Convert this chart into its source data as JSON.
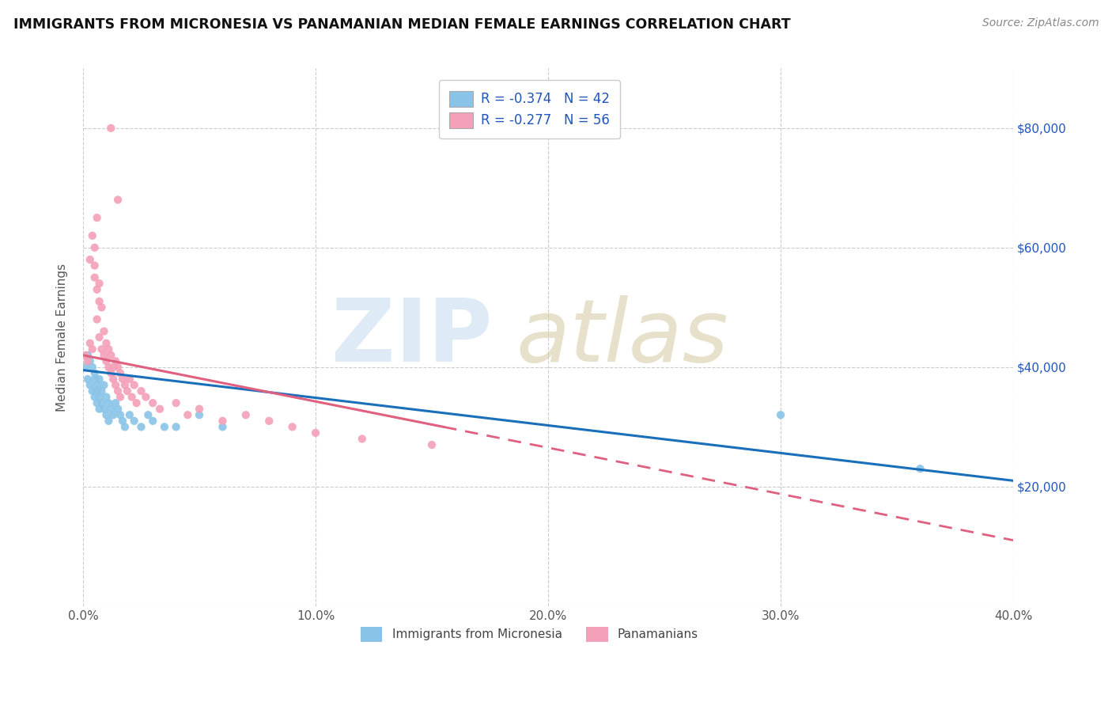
{
  "title": "IMMIGRANTS FROM MICRONESIA VS PANAMANIAN MEDIAN FEMALE EARNINGS CORRELATION CHART",
  "source": "Source: ZipAtlas.com",
  "ylabel": "Median Female Earnings",
  "legend_label_1": "Immigrants from Micronesia",
  "legend_label_2": "Panamanians",
  "color_blue": "#89c4e8",
  "color_pink": "#f4a0b8",
  "color_blue_line": "#1a6fba",
  "color_pink_line": "#e06080",
  "color_text_blue": "#2255bb",
  "xlim": [
    0.0,
    0.4
  ],
  "ylim": [
    0,
    90000
  ],
  "yticks": [
    0,
    20000,
    40000,
    60000,
    80000
  ],
  "ytick_labels": [
    "",
    "$20,000",
    "$40,000",
    "$60,000",
    "$80,000"
  ],
  "blue_scatter_x": [
    0.001,
    0.002,
    0.002,
    0.003,
    0.003,
    0.004,
    0.004,
    0.005,
    0.005,
    0.005,
    0.006,
    0.006,
    0.006,
    0.007,
    0.007,
    0.007,
    0.008,
    0.008,
    0.009,
    0.009,
    0.01,
    0.01,
    0.011,
    0.011,
    0.012,
    0.013,
    0.014,
    0.015,
    0.016,
    0.017,
    0.018,
    0.02,
    0.022,
    0.025,
    0.028,
    0.03,
    0.035,
    0.04,
    0.05,
    0.06,
    0.3,
    0.36
  ],
  "blue_scatter_y": [
    40000,
    42000,
    38000,
    41000,
    37000,
    40000,
    36000,
    39000,
    38000,
    35000,
    37000,
    36000,
    34000,
    38000,
    35000,
    33000,
    36000,
    34000,
    37000,
    33000,
    35000,
    32000,
    34000,
    31000,
    33000,
    32000,
    34000,
    33000,
    32000,
    31000,
    30000,
    32000,
    31000,
    30000,
    32000,
    31000,
    30000,
    30000,
    32000,
    30000,
    32000,
    23000
  ],
  "pink_scatter_x": [
    0.001,
    0.002,
    0.003,
    0.003,
    0.004,
    0.005,
    0.005,
    0.006,
    0.006,
    0.007,
    0.007,
    0.008,
    0.008,
    0.009,
    0.009,
    0.01,
    0.01,
    0.011,
    0.011,
    0.012,
    0.012,
    0.013,
    0.013,
    0.014,
    0.014,
    0.015,
    0.015,
    0.016,
    0.016,
    0.017,
    0.018,
    0.019,
    0.02,
    0.021,
    0.022,
    0.023,
    0.025,
    0.027,
    0.03,
    0.033,
    0.04,
    0.045,
    0.05,
    0.06,
    0.07,
    0.08,
    0.09,
    0.1,
    0.12,
    0.15,
    0.004,
    0.005,
    0.006,
    0.007,
    0.012,
    0.015
  ],
  "pink_scatter_y": [
    42000,
    41000,
    58000,
    44000,
    43000,
    57000,
    55000,
    53000,
    48000,
    51000,
    45000,
    50000,
    43000,
    46000,
    42000,
    44000,
    41000,
    43000,
    40000,
    42000,
    39000,
    40000,
    38000,
    41000,
    37000,
    40000,
    36000,
    39000,
    35000,
    38000,
    37000,
    36000,
    38000,
    35000,
    37000,
    34000,
    36000,
    35000,
    34000,
    33000,
    34000,
    32000,
    33000,
    31000,
    32000,
    31000,
    30000,
    29000,
    28000,
    27000,
    62000,
    60000,
    65000,
    54000,
    80000,
    68000
  ],
  "blue_trendline_x0": 0.0,
  "blue_trendline_x1": 0.4,
  "pink_trendline_x0": 0.0,
  "pink_trendline_solid_end": 0.155,
  "pink_trendline_x1": 0.4
}
